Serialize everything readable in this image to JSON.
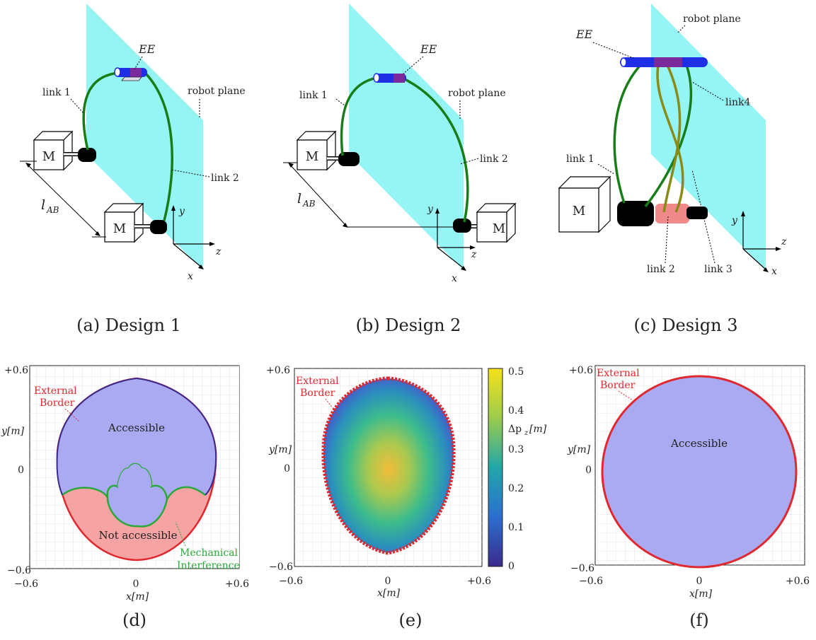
{
  "captions": {
    "a": "(a) Design 1",
    "b": "(b) Design 2",
    "c": "(c) Design 3",
    "d": "(d)",
    "e": "(e)",
    "f": "(f)"
  },
  "design1": {
    "ee": "EE",
    "link1": "link 1",
    "link2": "link 2",
    "robot_plane": "robot plane",
    "motor": "M",
    "lab": "l",
    "lab_sub": "AB",
    "axis_x": "x",
    "axis_y": "y",
    "axis_z": "z"
  },
  "design2": {
    "ee": "EE",
    "link1": "link 1",
    "link2": "link 2",
    "robot_plane": "robot plane",
    "motor": "M",
    "lab": "l",
    "lab_sub": "AB",
    "axis_x": "x",
    "axis_y": "y",
    "axis_z": "z"
  },
  "design3": {
    "ee": "EE",
    "robot_plane": "robot plane",
    "link1": "link 1",
    "link2": "link 2",
    "link3": "link 3",
    "link4": "link4",
    "motor": "M",
    "axis_x": "x",
    "axis_y": "y",
    "axis_z": "z"
  },
  "plot_d": {
    "ytick_top": "+0.6",
    "ytick_mid": "0",
    "ytick_bot": "−0.6",
    "xtick_left": "−0.6",
    "xtick_mid": "0",
    "xtick_right": "+0.6",
    "xlabel": "x[m]",
    "ylabel": "y[m]",
    "external_border_1": "External",
    "external_border_2": "Border",
    "accessible": "Accessible",
    "not_accessible": "Not accessible",
    "mech_1": "Mechanical",
    "mech_2": "Interference",
    "colors": {
      "accessible": "#aaaaf2",
      "not_accessible": "#f5a3a3",
      "border": "#e0282e",
      "interference": "#2aa83a"
    }
  },
  "plot_e": {
    "ytick_top": "+0.6",
    "ytick_mid": "0",
    "ytick_bot": "−0.6",
    "xtick_left": "−0.6",
    "xtick_mid": "0",
    "xtick_right": "+0.6",
    "xlabel": "x[m]",
    "ylabel": "y[m]",
    "external_border_1": "External",
    "external_border_2": "Border",
    "colorbar_label": "Δp",
    "colorbar_sub": "z",
    "colorbar_unit": "[m]",
    "colorbar_ticks": [
      "0.5",
      "0.4",
      "0.3",
      "0.2",
      "0.1",
      "0"
    ]
  },
  "plot_f": {
    "ytick_top": "+0.6",
    "ytick_mid": "0",
    "ytick_bot": "−0.6",
    "xtick_left": "−0.6",
    "xtick_mid": "0",
    "xtick_right": "+0.6",
    "xlabel": "x[m]",
    "ylabel": "y[m]",
    "external_border_1": "External",
    "external_border_2": "Border",
    "accessible": "Accessible"
  }
}
